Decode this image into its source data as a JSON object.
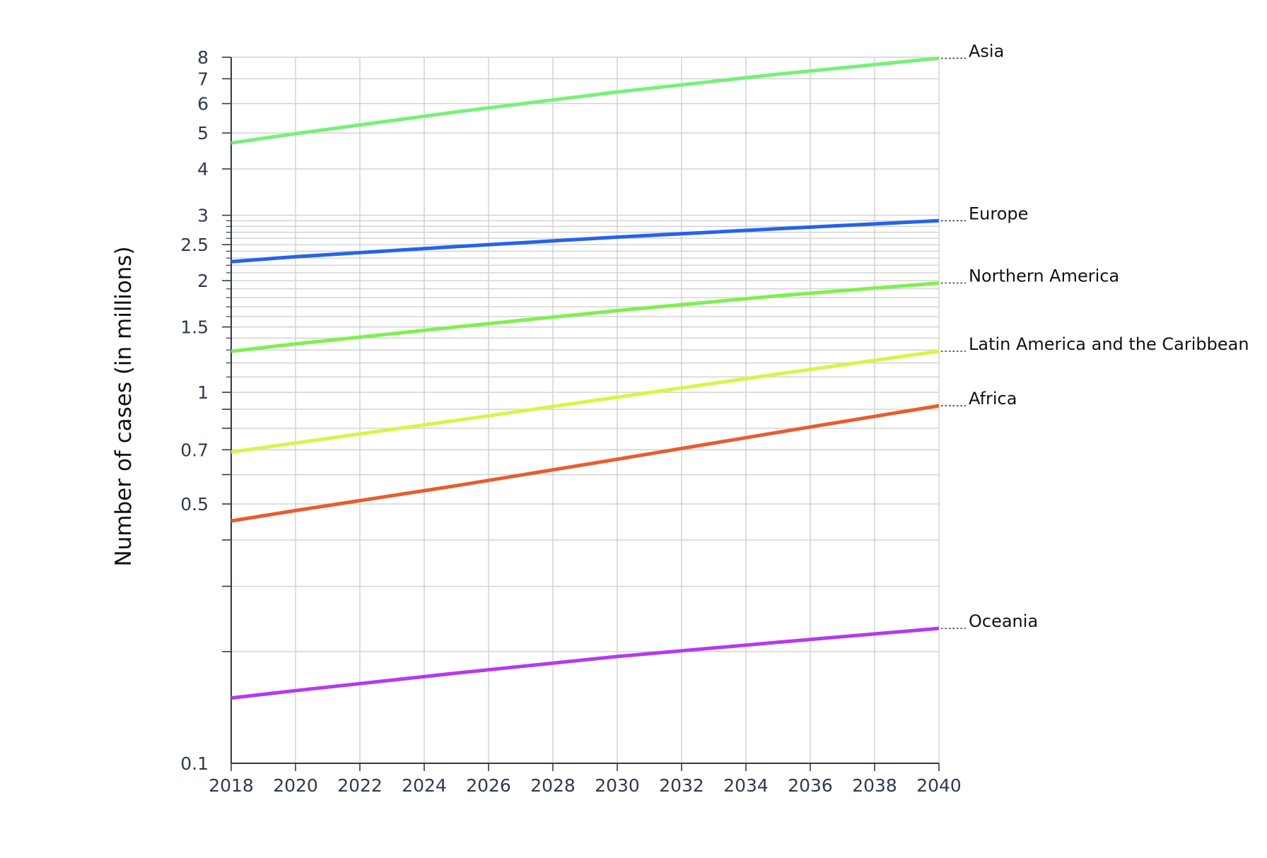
{
  "chart_data": {
    "type": "line",
    "title": "",
    "xlabel": "",
    "ylabel": "Number of cases (in millions)",
    "yscale": "log",
    "xlim": [
      2018,
      2040
    ],
    "ylim": [
      0.1,
      8
    ],
    "x_ticks": [
      "2018",
      "2020",
      "2022",
      "2024",
      "2026",
      "2028",
      "2030",
      "2032",
      "2034",
      "2036",
      "2038",
      "2040"
    ],
    "y_tick_labels": [
      {
        "value": 0.1,
        "label": "0.1"
      },
      {
        "value": 0.5,
        "label": "0.5"
      },
      {
        "value": 0.7,
        "label": "0.7"
      },
      {
        "value": 1,
        "label": "1"
      },
      {
        "value": 1.5,
        "label": "1.5"
      },
      {
        "value": 2,
        "label": "2"
      },
      {
        "value": 2.5,
        "label": "2.5"
      },
      {
        "value": 3,
        "label": "3"
      },
      {
        "value": 4,
        "label": "4"
      },
      {
        "value": 5,
        "label": "5"
      },
      {
        "value": 6,
        "label": "6"
      },
      {
        "value": 7,
        "label": "7"
      },
      {
        "value": 8,
        "label": "8"
      }
    ],
    "grid": true,
    "legend": "end-of-line labels",
    "series": [
      {
        "name": "Asia",
        "color": "#77f07a",
        "x": [
          2018,
          2020,
          2025,
          2030,
          2035,
          2040
        ],
        "values": [
          4.7,
          4.98,
          5.7,
          6.45,
          7.2,
          7.95
        ]
      },
      {
        "name": "Europe",
        "color": "#2563eb",
        "x": [
          2018,
          2020,
          2025,
          2030,
          2035,
          2040
        ],
        "values": [
          2.25,
          2.32,
          2.47,
          2.62,
          2.76,
          2.9
        ]
      },
      {
        "name": "Northern America",
        "color": "#7ef050",
        "x": [
          2018,
          2020,
          2025,
          2030,
          2035,
          2040
        ],
        "values": [
          1.29,
          1.35,
          1.5,
          1.66,
          1.82,
          1.97
        ]
      },
      {
        "name": "Latin America and the Caribbean",
        "color": "#d8f545",
        "x": [
          2018,
          2020,
          2025,
          2030,
          2035,
          2040
        ],
        "values": [
          0.69,
          0.73,
          0.84,
          0.97,
          1.12,
          1.29
        ]
      },
      {
        "name": "Africa",
        "color": "#e85d2c",
        "x": [
          2018,
          2020,
          2025,
          2030,
          2035,
          2040
        ],
        "values": [
          0.45,
          0.48,
          0.56,
          0.66,
          0.78,
          0.92
        ]
      },
      {
        "name": "Oceania",
        "color": "#b43af0",
        "x": [
          2018,
          2020,
          2025,
          2030,
          2035,
          2040
        ],
        "values": [
          0.15,
          0.157,
          0.175,
          0.194,
          0.212,
          0.231
        ]
      }
    ]
  }
}
